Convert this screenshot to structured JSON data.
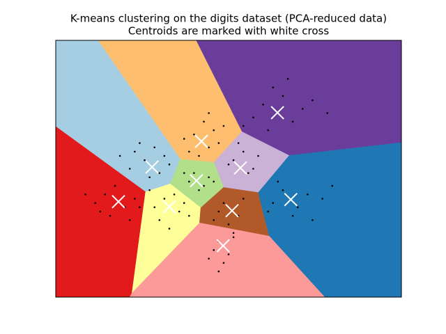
{
  "chart_data": {
    "type": "scatter",
    "title": "K-means clustering on the digits dataset (PCA-reduced data)",
    "subtitle": "Centroids are marked with white cross",
    "xlim": [
      -30,
      40
    ],
    "ylim": [
      -30,
      30
    ],
    "point_color": "#000000",
    "centroid_color": "#ffffff",
    "region_colors": [
      "#6a3d9a",
      "#fdbf6f",
      "#a6cee3",
      "#cab2d6",
      "#b2df8a",
      "#e31a1c",
      "#ffff99",
      "#b15928",
      "#1f78b4",
      "#fb9a99"
    ],
    "centroids": {
      "x": [
        14.9,
        -0.5,
        -10.5,
        7.4,
        -1.5,
        -17.3,
        -7.0,
        5.7,
        17.6,
        3.9
      ],
      "y": [
        13.1,
        6.4,
        0.4,
        0.2,
        -2.8,
        -7.7,
        -8.9,
        -9.8,
        -7.2,
        -18.0
      ]
    },
    "points": {
      "x": [
        12,
        16,
        10,
        18,
        14,
        20,
        8,
        22,
        13,
        17,
        25,
        -2,
        1,
        -3,
        2,
        0,
        -4,
        3,
        -1,
        1,
        4,
        -12,
        -9,
        -14,
        -8,
        -11,
        -15,
        -7,
        -13,
        -10,
        -17,
        6,
        9,
        8,
        5,
        11,
        7,
        10,
        -2,
        0,
        -3,
        1,
        -1,
        -4,
        2,
        -20,
        -16,
        -19,
        -14,
        -22,
        -18,
        -24,
        -15,
        -21,
        -13,
        -8,
        -5,
        -9,
        -6,
        -10,
        -4,
        -7,
        -11,
        -3,
        4,
        7,
        5,
        3,
        8,
        6,
        2,
        16,
        19,
        14,
        21,
        18,
        24,
        15,
        22,
        26,
        13,
        3,
        5,
        2,
        4,
        6,
        1,
        3
      ],
      "y": [
        15,
        17,
        12,
        11,
        19,
        14,
        10,
        16,
        9,
        21,
        13,
        8,
        5,
        4,
        9,
        11,
        7,
        6,
        3,
        13,
        10,
        2,
        -1,
        4,
        3,
        -2,
        0,
        1,
        6,
        5,
        3,
        2,
        -1,
        4,
        1,
        3,
        6,
        0,
        -1,
        -4,
        -3,
        -2,
        -5,
        -1,
        -3,
        -6,
        -9,
        -11,
        -7,
        -8,
        -4,
        -6,
        -12,
        -10,
        -9,
        -7,
        -10,
        -12,
        -6,
        -9,
        -8,
        -14,
        -5,
        -11,
        -8,
        -11,
        -13,
        -10,
        -7,
        -15,
        -12,
        -5,
        -9,
        -8,
        -6,
        -11,
        -7,
        -3,
        -12,
        -4,
        -10,
        -17,
        -20,
        -19,
        -22,
        -16,
        -21,
        -24
      ]
    }
  }
}
